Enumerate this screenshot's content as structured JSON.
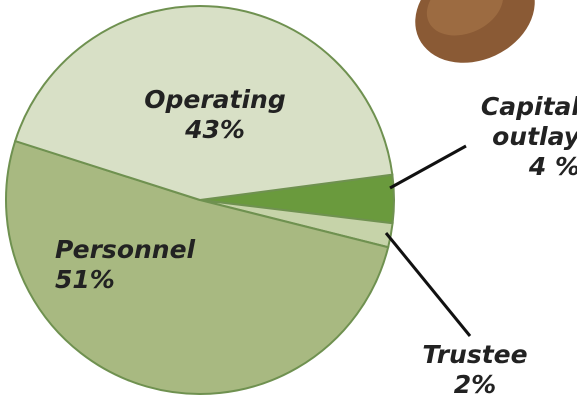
{
  "chart_data": {
    "type": "pie",
    "categories": [
      "Capital outlay",
      "Trustee",
      "Personnel",
      "Operating"
    ],
    "values": [
      4,
      2,
      51,
      43
    ],
    "value_labels": [
      "4 %",
      "2%",
      "51%",
      "43%"
    ],
    "colors": [
      "#6a9a3d",
      "#c6d3a9",
      "#a8b981",
      "#d8e0c6"
    ]
  }
}
